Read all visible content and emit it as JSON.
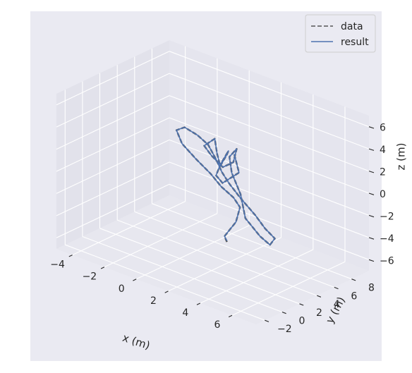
{
  "chart_data": {
    "type": "line",
    "projection": "3d",
    "xlabel": "x (m)",
    "ylabel": "y (m)",
    "zlabel": "z (m)",
    "xlim": [
      -5,
      7.5
    ],
    "ylim": [
      -3,
      10
    ],
    "zlim": [
      -7,
      7
    ],
    "x_ticks": [
      -4,
      -2,
      0,
      2,
      4,
      6
    ],
    "y_ticks": [
      -2,
      0,
      2,
      4,
      6,
      8
    ],
    "z_ticks": [
      -6,
      -4,
      -2,
      0,
      2,
      4,
      6
    ],
    "x_tick_labels": [
      "−4",
      "−2",
      "0",
      "2",
      "4",
      "6"
    ],
    "y_tick_labels": [
      "−2",
      "0",
      "2",
      "4",
      "6",
      "8"
    ],
    "z_tick_labels": [
      "−6",
      "−4",
      "−2",
      "0",
      "2",
      "4",
      "6"
    ],
    "grid": true,
    "legend_position": "top-right",
    "legend": [
      {
        "label": "data",
        "style": "dashed",
        "color": "#555555"
      },
      {
        "label": "result",
        "style": "solid",
        "color": "#4c72b0"
      }
    ],
    "series": [
      {
        "name": "data",
        "style": "dashed",
        "color": "#555555",
        "points": [
          [
            1.0,
            5.6,
            -6.3
          ],
          [
            0.9,
            5.5,
            -5.8
          ],
          [
            1.4,
            5.9,
            -4.4
          ],
          [
            1.6,
            6.0,
            -3.0
          ],
          [
            1.3,
            5.8,
            -2.2
          ],
          [
            0.8,
            5.3,
            -1.3
          ],
          [
            0.3,
            5.0,
            -0.3
          ],
          [
            -0.4,
            4.6,
            0.8
          ],
          [
            -1.1,
            4.3,
            1.9
          ],
          [
            -1.4,
            4.2,
            3.0
          ],
          [
            -1.0,
            4.4,
            3.4
          ],
          [
            -0.3,
            4.6,
            3.0
          ],
          [
            0.2,
            4.9,
            2.3
          ],
          [
            0.6,
            5.1,
            1.1
          ],
          [
            0.9,
            5.2,
            0.1
          ],
          [
            1.2,
            5.5,
            -0.9
          ],
          [
            1.7,
            5.9,
            -2.1
          ],
          [
            2.4,
            6.3,
            -3.4
          ],
          [
            2.9,
            6.5,
            -4.4
          ],
          [
            3.4,
            6.7,
            -5.1
          ],
          [
            3.2,
            6.5,
            -5.7
          ],
          [
            2.8,
            6.1,
            -5.0
          ],
          [
            2.1,
            5.7,
            -3.6
          ],
          [
            1.8,
            5.7,
            -1.6
          ],
          [
            1.3,
            5.6,
            0.1
          ],
          [
            1.1,
            5.7,
            1.4
          ],
          [
            1.5,
            5.8,
            2.3
          ],
          [
            1.4,
            5.6,
            1.1
          ],
          [
            0.9,
            5.3,
            0.5
          ],
          [
            0.3,
            5.1,
            1.3
          ],
          [
            -0.1,
            5.0,
            2.0
          ],
          [
            0.4,
            5.3,
            2.8
          ],
          [
            0.6,
            5.2,
            1.6
          ],
          [
            0.8,
            5.2,
            0.6
          ],
          [
            1.1,
            5.4,
            1.7
          ],
          [
            1.2,
            5.4,
            2.1
          ],
          [
            0.9,
            5.0,
            0.8
          ],
          [
            0.7,
            4.9,
            -0.2
          ],
          [
            1.0,
            5.1,
            -0.8
          ],
          [
            1.7,
            5.7,
            0.3
          ],
          [
            1.4,
            5.7,
            1.8
          ]
        ]
      },
      {
        "name": "result",
        "style": "solid",
        "color": "#4c72b0",
        "points": [
          [
            1.0,
            5.6,
            -6.2
          ],
          [
            0.9,
            5.5,
            -5.8
          ],
          [
            1.4,
            5.9,
            -4.4
          ],
          [
            1.6,
            6.0,
            -3.0
          ],
          [
            1.3,
            5.8,
            -2.2
          ],
          [
            0.8,
            5.3,
            -1.3
          ],
          [
            0.3,
            5.0,
            -0.3
          ],
          [
            -0.4,
            4.6,
            0.8
          ],
          [
            -1.1,
            4.3,
            1.9
          ],
          [
            -1.4,
            4.2,
            3.0
          ],
          [
            -1.0,
            4.4,
            3.4
          ],
          [
            -0.3,
            4.6,
            3.0
          ],
          [
            0.2,
            4.9,
            2.3
          ],
          [
            0.6,
            5.1,
            1.1
          ],
          [
            0.9,
            5.2,
            0.1
          ],
          [
            1.2,
            5.5,
            -0.9
          ],
          [
            1.7,
            5.9,
            -2.1
          ],
          [
            2.4,
            6.3,
            -3.4
          ],
          [
            2.9,
            6.5,
            -4.4
          ],
          [
            3.4,
            6.7,
            -5.1
          ],
          [
            3.2,
            6.5,
            -5.7
          ],
          [
            2.8,
            6.1,
            -5.0
          ],
          [
            2.1,
            5.7,
            -3.6
          ],
          [
            1.8,
            5.7,
            -1.6
          ],
          [
            1.3,
            5.6,
            0.1
          ],
          [
            1.1,
            5.7,
            1.4
          ],
          [
            1.5,
            5.8,
            2.3
          ],
          [
            1.4,
            5.6,
            1.1
          ],
          [
            0.9,
            5.3,
            0.5
          ],
          [
            0.3,
            5.1,
            1.3
          ],
          [
            -0.1,
            5.0,
            2.0
          ],
          [
            0.4,
            5.3,
            2.8
          ],
          [
            0.6,
            5.2,
            1.6
          ],
          [
            0.8,
            5.2,
            0.6
          ],
          [
            1.1,
            5.4,
            1.7
          ],
          [
            1.2,
            5.4,
            2.1
          ],
          [
            0.9,
            5.0,
            0.8
          ],
          [
            0.7,
            4.9,
            -0.2
          ],
          [
            1.0,
            5.1,
            -0.8
          ],
          [
            1.7,
            5.7,
            0.3
          ],
          [
            1.4,
            5.7,
            1.8
          ]
        ]
      }
    ]
  },
  "colors": {
    "figure_background": "#eaeaf2",
    "pane_back": "#e5e5ee",
    "pane_side": "#e2e2eb",
    "pane_floor": "#e7e7ef",
    "grid": "#ffffff",
    "tick_color": "#262626"
  }
}
